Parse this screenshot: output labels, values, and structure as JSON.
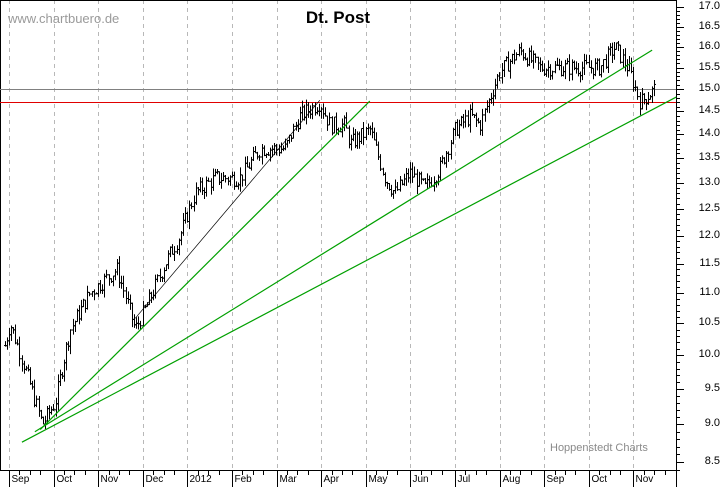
{
  "chart_data": {
    "type": "ohlc",
    "title": "Dt. Post",
    "watermark": "www.chartbuero.de",
    "source": "Hoppenstedt Charts",
    "x_unit": "months since start of Sep 2011",
    "x_labels": [
      "Sep",
      "Oct",
      "Nov",
      "Dec",
      "2012",
      "Feb",
      "Mar",
      "Apr",
      "May",
      "Jun",
      "Jul",
      "Aug",
      "Sep",
      "Oct",
      "Nov"
    ],
    "y_scale": "log",
    "ylim": [
      8.5,
      17.0
    ],
    "y_ticks": [
      "17.0",
      "16.5",
      "16.0",
      "15.5",
      "15.0",
      "14.5",
      "14.0",
      "13.5",
      "13.0",
      "12.5",
      "12.0",
      "11.5",
      "11.0",
      "10.5",
      "10.0",
      "9.5",
      "9.0",
      "8.5"
    ],
    "close_path": [
      [
        -0.1,
        10.15
      ],
      [
        0.02,
        10.5
      ],
      [
        0.36,
        9.8
      ],
      [
        0.74,
        9.0
      ],
      [
        1.03,
        9.3
      ],
      [
        1.37,
        10.4
      ],
      [
        1.82,
        11.0
      ],
      [
        2.42,
        11.4
      ],
      [
        2.83,
        10.4
      ],
      [
        3.16,
        10.9
      ],
      [
        3.5,
        11.5
      ],
      [
        3.83,
        12.0
      ],
      [
        4.17,
        12.8
      ],
      [
        4.62,
        13.1
      ],
      [
        5.18,
        13.1
      ],
      [
        5.63,
        13.7
      ],
      [
        6.19,
        13.7
      ],
      [
        6.52,
        14.4
      ],
      [
        6.97,
        14.7
      ],
      [
        7.2,
        14.2
      ],
      [
        7.53,
        14.2
      ],
      [
        7.65,
        13.8
      ],
      [
        8.09,
        14.1
      ],
      [
        8.43,
        13.1
      ],
      [
        8.65,
        12.8
      ],
      [
        8.99,
        13.2
      ],
      [
        9.33,
        12.9
      ],
      [
        9.66,
        13.3
      ],
      [
        10.0,
        14.1
      ],
      [
        10.34,
        14.4
      ],
      [
        10.56,
        14.2
      ],
      [
        10.78,
        14.8
      ],
      [
        11.0,
        15.4
      ],
      [
        11.45,
        15.9
      ],
      [
        11.9,
        15.5
      ],
      [
        12.35,
        15.5
      ],
      [
        12.8,
        15.5
      ],
      [
        13.25,
        15.5
      ],
      [
        13.59,
        16.0
      ],
      [
        13.92,
        15.4
      ],
      [
        14.15,
        14.7
      ],
      [
        14.37,
        14.9
      ],
      [
        14.48,
        15.0
      ]
    ],
    "horizontal_lines": [
      {
        "price": 15.0,
        "color": "#808080"
      },
      {
        "price": 14.7,
        "color": "#e00000"
      }
    ],
    "trendlines": [
      {
        "from": [
          0.29,
          8.76
        ],
        "to": [
          14.96,
          14.82
        ],
        "color": "#00a000"
      },
      {
        "from": [
          0.58,
          8.9
        ],
        "to": [
          14.42,
          15.92
        ],
        "color": "#00a000"
      },
      {
        "from": [
          0.7,
          8.93
        ],
        "to": [
          8.09,
          14.73
        ],
        "color": "#00a000"
      },
      {
        "from": [
          2.83,
          10.58
        ],
        "to": [
          6.97,
          14.75
        ],
        "color": "#000000"
      }
    ]
  }
}
